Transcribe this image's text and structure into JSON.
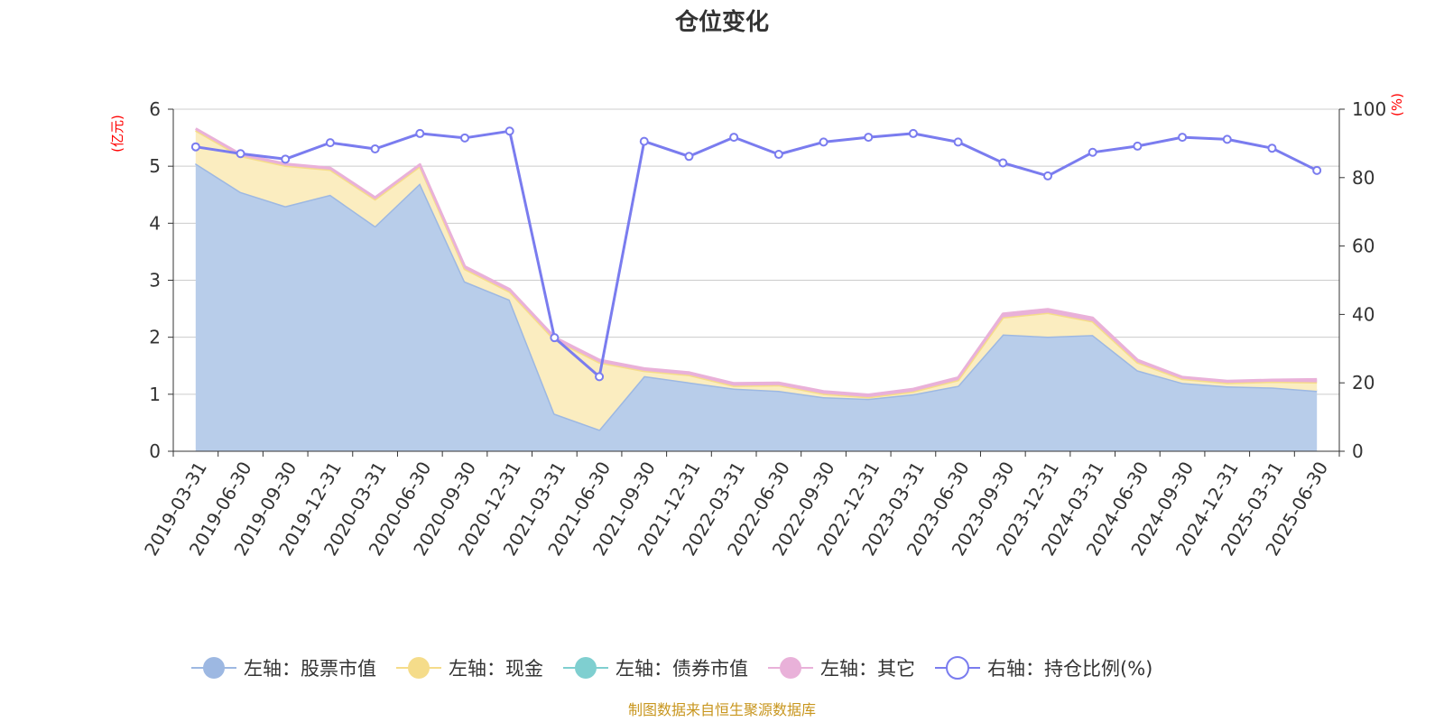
{
  "colors": {
    "stock": "#9db8e2",
    "stock_fill": "#b8cdea",
    "cash": "#f5dc8a",
    "cash_fill": "#fbedc0",
    "bond": "#7fcfd0",
    "other": "#e9b1d9",
    "ratio": "#7a7cef",
    "grid": "#cccccc",
    "axis": "#333333",
    "unit_label": "#ff0000",
    "source": "#c8961e"
  },
  "chart_data": {
    "type": "area",
    "title": "仓位变化",
    "left_axis_unit": "(亿元)",
    "right_axis_unit": "(%)",
    "ylim_left": [
      0,
      6
    ],
    "yticks_left": [
      0,
      1,
      2,
      3,
      4,
      5,
      6
    ],
    "ylim_right": [
      0,
      100
    ],
    "yticks_right": [
      0,
      20,
      40,
      60,
      80,
      100
    ],
    "grid": true,
    "legend_position": "bottom",
    "categories": [
      "2019-03-31",
      "2019-06-30",
      "2019-09-30",
      "2019-12-31",
      "2020-03-31",
      "2020-06-30",
      "2020-09-30",
      "2020-12-31",
      "2021-03-31",
      "2021-06-30",
      "2021-09-30",
      "2021-12-31",
      "2022-03-31",
      "2022-06-30",
      "2022-09-30",
      "2022-12-31",
      "2023-03-31",
      "2023-06-30",
      "2023-09-30",
      "2023-12-31",
      "2024-03-31",
      "2024-06-30",
      "2024-09-30",
      "2024-12-31",
      "2025-03-31",
      "2025-06-30"
    ],
    "series": [
      {
        "key": "stock",
        "name": "左轴：股票市值",
        "axis": "left",
        "values": [
          5.05,
          4.55,
          4.3,
          4.5,
          3.95,
          4.7,
          2.98,
          2.66,
          0.66,
          0.38,
          1.32,
          1.21,
          1.1,
          1.06,
          0.95,
          0.92,
          1.0,
          1.15,
          2.05,
          2.01,
          2.04,
          1.42,
          1.2,
          1.14,
          1.12,
          1.06
        ]
      },
      {
        "key": "cash",
        "name": "左轴：现金",
        "axis": "left",
        "values": [
          0.58,
          0.63,
          0.71,
          0.44,
          0.47,
          0.3,
          0.22,
          0.14,
          1.3,
          1.18,
          0.09,
          0.13,
          0.05,
          0.1,
          0.06,
          0.03,
          0.05,
          0.1,
          0.3,
          0.42,
          0.24,
          0.14,
          0.07,
          0.06,
          0.1,
          0.15
        ]
      },
      {
        "key": "bond",
        "name": "左轴：债券市值",
        "axis": "left",
        "values": [
          0,
          0,
          0,
          0,
          0,
          0,
          0,
          0,
          0,
          0,
          0,
          0,
          0,
          0,
          0,
          0,
          0,
          0,
          0,
          0,
          0,
          0,
          0,
          0,
          0,
          0
        ]
      },
      {
        "key": "other",
        "name": "左轴：其它",
        "axis": "left",
        "values": [
          0.03,
          0.03,
          0.03,
          0.03,
          0.03,
          0.03,
          0.04,
          0.04,
          0.04,
          0.04,
          0.04,
          0.04,
          0.04,
          0.04,
          0.04,
          0.04,
          0.04,
          0.04,
          0.06,
          0.06,
          0.06,
          0.04,
          0.03,
          0.03,
          0.03,
          0.05
        ]
      },
      {
        "key": "ratio",
        "name": "右轴：持仓比例(%)",
        "axis": "right",
        "values": [
          89.0,
          87.0,
          85.4,
          90.2,
          88.4,
          92.9,
          91.6,
          93.6,
          33.2,
          21.8,
          90.6,
          86.2,
          91.8,
          86.8,
          90.4,
          91.8,
          92.9,
          90.4,
          84.3,
          80.5,
          87.4,
          89.2,
          91.8,
          91.2,
          88.6,
          82.1
        ]
      }
    ]
  },
  "legend": [
    {
      "key": "stock",
      "label": "左轴：股票市值",
      "style": "filled"
    },
    {
      "key": "cash",
      "label": "左轴：现金",
      "style": "filled"
    },
    {
      "key": "bond",
      "label": "左轴：债券市值",
      "style": "filled"
    },
    {
      "key": "other",
      "label": "左轴：其它",
      "style": "filled"
    },
    {
      "key": "ratio",
      "label": "右轴：持仓比例(%)",
      "style": "hollow"
    }
  ],
  "source_text": "制图数据来自恒生聚源数据库"
}
